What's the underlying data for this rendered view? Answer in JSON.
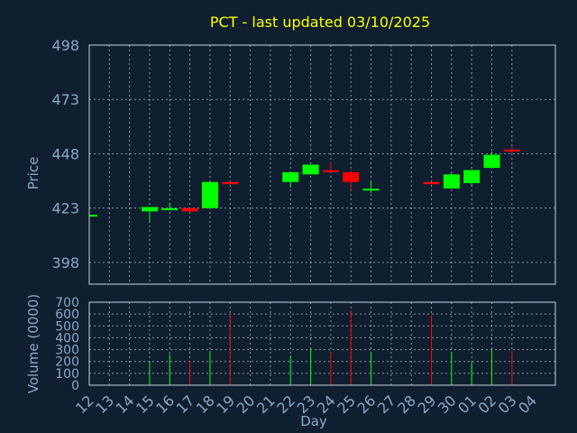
{
  "chart_data": {
    "type": "candlestick",
    "title": "PCT - last updated 03/10/2025",
    "ylabel": "Price",
    "volume_ylabel": "Volume (0000)",
    "xlabel": "Day",
    "ylim": [
      388,
      498
    ],
    "yticks": [
      398,
      423,
      448,
      473,
      498
    ],
    "volume_ylim": [
      0,
      700
    ],
    "volume_yticks": [
      0,
      100,
      200,
      300,
      400,
      500,
      600,
      700
    ],
    "grid": true,
    "colors": {
      "up": "#00ff00",
      "down": "#ff0000",
      "title": "#ffff00",
      "tick": "#8aa8c8",
      "background": "#0f1f30"
    },
    "categories": [
      "12",
      "13",
      "14",
      "15",
      "16",
      "17",
      "18",
      "19",
      "20",
      "21",
      "22",
      "23",
      "24",
      "25",
      "26",
      "27",
      "28",
      "29",
      "30",
      "01",
      "02",
      "03",
      "04"
    ],
    "candles": [
      {
        "day": "12",
        "open": 419.5,
        "close": 419.5,
        "high": 419.5,
        "low": 419.5,
        "volume": 0
      },
      {
        "day": "15",
        "open": 421.5,
        "close": 423.5,
        "high": 423.5,
        "low": 416.5,
        "volume": 200
      },
      {
        "day": "16",
        "open": 422.5,
        "close": 422.5,
        "high": 425.5,
        "low": 422.0,
        "volume": 260
      },
      {
        "day": "17",
        "open": 423.0,
        "close": 421.5,
        "high": 423.0,
        "low": 421.0,
        "volume": 210
      },
      {
        "day": "18",
        "open": 423.0,
        "close": 435.0,
        "high": 435.0,
        "low": 423.0,
        "volume": 290
      },
      {
        "day": "19",
        "open": 435.0,
        "close": 434.0,
        "high": 435.0,
        "low": 434.0,
        "volume": 600
      },
      {
        "day": "22",
        "open": 435.0,
        "close": 439.5,
        "high": 439.5,
        "low": 432.5,
        "volume": 250
      },
      {
        "day": "23",
        "open": 438.5,
        "close": 443.0,
        "high": 443.0,
        "low": 438.5,
        "volume": 310
      },
      {
        "day": "24",
        "open": 440.0,
        "close": 439.5,
        "high": 444.0,
        "low": 439.5,
        "volume": 280
      },
      {
        "day": "25",
        "open": 439.5,
        "close": 435.0,
        "high": 440.0,
        "low": 431.0,
        "volume": 630
      },
      {
        "day": "26",
        "open": 431.0,
        "close": 431.5,
        "high": 435.0,
        "low": 430.0,
        "volume": 280
      },
      {
        "day": "29",
        "open": 435.0,
        "close": 434.0,
        "high": 435.0,
        "low": 434.0,
        "volume": 590
      },
      {
        "day": "30",
        "open": 432.0,
        "close": 438.5,
        "high": 439.0,
        "low": 432.0,
        "volume": 280
      },
      {
        "day": "01",
        "open": 434.5,
        "close": 440.5,
        "high": 440.5,
        "low": 433.5,
        "volume": 200
      },
      {
        "day": "02",
        "open": 441.5,
        "close": 447.5,
        "high": 449.0,
        "low": 441.5,
        "volume": 300
      },
      {
        "day": "03",
        "open": 449.5,
        "close": 449.0,
        "high": 451.0,
        "low": 448.0,
        "volume": 290
      }
    ]
  }
}
